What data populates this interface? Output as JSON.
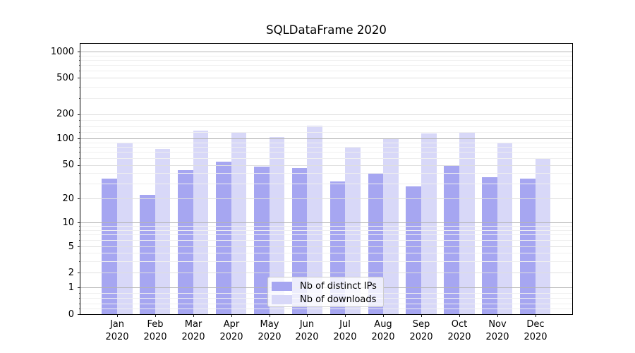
{
  "chart_data": {
    "type": "bar",
    "title": "SQLDataFrame 2020",
    "categories": [
      "Jan",
      "Feb",
      "Mar",
      "Apr",
      "May",
      "Jun",
      "Jul",
      "Aug",
      "Sep",
      "Oct",
      "Nov",
      "Dec"
    ],
    "category_sublabel": "2020",
    "series": [
      {
        "name": "Nb of distinct IPs",
        "color": "#a6a6f1",
        "values": [
          34,
          22,
          43,
          54,
          48,
          46,
          32,
          40,
          28,
          50,
          36,
          34
        ]
      },
      {
        "name": "Nb of downloads",
        "color": "#d8d8f8",
        "values": [
          90,
          76,
          124,
          121,
          105,
          145,
          78,
          101,
          115,
          118,
          90,
          58
        ]
      }
    ],
    "y_axis": {
      "scale": "symlog",
      "tick_values": [
        0,
        1,
        2,
        5,
        10,
        20,
        50,
        100,
        200,
        500,
        1000
      ],
      "tick_labels": [
        "0",
        "1",
        "2",
        "5",
        "10",
        "20",
        "50",
        "100",
        "200",
        "500",
        "1000"
      ],
      "major_gridlines": [
        1,
        10,
        100,
        1000
      ],
      "mid_gridlines": [
        2,
        5,
        20,
        50,
        200,
        500
      ],
      "minor_gridlines": [
        0.2,
        0.4,
        0.6,
        0.8,
        3,
        4,
        6,
        7,
        8,
        9,
        30,
        40,
        60,
        70,
        80,
        90,
        120,
        140,
        170,
        300,
        400,
        600,
        700,
        800,
        900
      ],
      "range": [
        0,
        1200
      ]
    },
    "legend": {
      "entries": [
        "Nb of distinct IPs",
        "Nb of downloads"
      ],
      "position": "lower center"
    },
    "grid": "horizontal major+minor, drawn above bars"
  },
  "colors": {
    "background": "#ffffff",
    "spine": "#000000",
    "text": "#000000",
    "grid_major": "#b4b4b4",
    "grid_mid": "#dfdfdf",
    "grid_minor": "#efefef",
    "legend_border": "#cccccc",
    "legend_background": "rgba(255,255,255,0.8)"
  }
}
